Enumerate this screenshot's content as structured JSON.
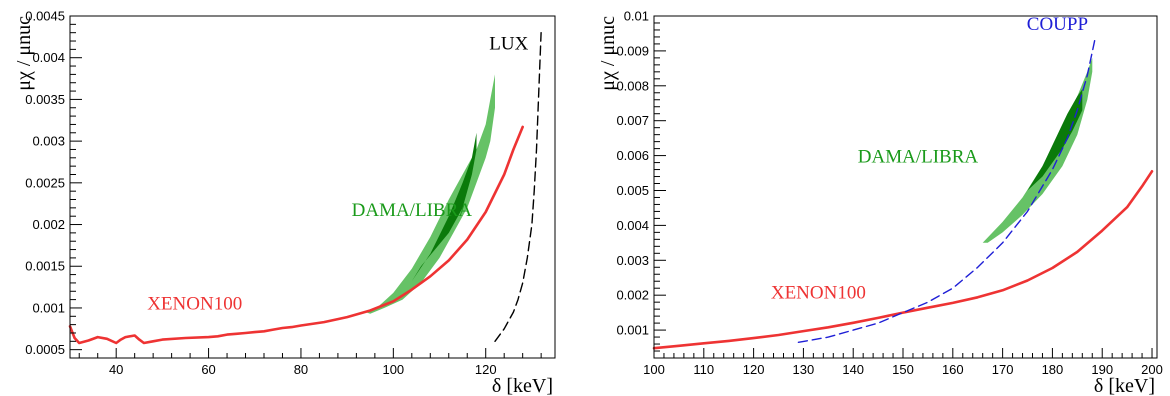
{
  "colors": {
    "xenon": "#ee3333",
    "lux": "#000000",
    "coupp": "#1f1fd6",
    "dama_outer": "#66c266",
    "dama_inner": "#0a7a0a",
    "dama_text": "#1a9a1a"
  },
  "chart_data": [
    {
      "type": "line",
      "xlabel": "δ [keV]",
      "ylabel": "μχ / μnuc",
      "xlim": [
        30,
        135
      ],
      "ylim": [
        0.0004,
        0.0045
      ],
      "x_ticks": [
        40,
        60,
        80,
        100,
        120
      ],
      "x_tick_labels": [
        "40",
        "60",
        "80",
        "100",
        "120"
      ],
      "y_ticks": [
        0.0005,
        0.001,
        0.0015,
        0.002,
        0.0025,
        0.003,
        0.0035,
        0.004,
        0.0045
      ],
      "y_tick_labels": [
        "0.0005",
        "0.001",
        "0.0015",
        "0.002",
        "0.0025",
        "0.003",
        "0.0035",
        "0.004",
        "0.0045"
      ],
      "grid": false,
      "series": [
        {
          "name": "XENON100",
          "style": "solid",
          "color_key": "xenon",
          "x": [
            30,
            31,
            32,
            34,
            36,
            38,
            40,
            41,
            42,
            44,
            45,
            46,
            48,
            50,
            55,
            60,
            62,
            64,
            66,
            68,
            70,
            72,
            74,
            76,
            78,
            80,
            85,
            90,
            95,
            100,
            104,
            108,
            112,
            116,
            120,
            124,
            126,
            128
          ],
          "y": [
            0.00078,
            0.00064,
            0.00058,
            0.00061,
            0.00065,
            0.00063,
            0.00058,
            0.00062,
            0.00065,
            0.00067,
            0.00062,
            0.00058,
            0.0006,
            0.00062,
            0.00064,
            0.00065,
            0.00066,
            0.00068,
            0.00069,
            0.0007,
            0.00071,
            0.00072,
            0.00074,
            0.00076,
            0.00077,
            0.00079,
            0.00083,
            0.00089,
            0.00097,
            0.00108,
            0.00122,
            0.00138,
            0.00157,
            0.00182,
            0.00215,
            0.0026,
            0.0029,
            0.00317
          ]
        },
        {
          "name": "LUX",
          "style": "dashed",
          "color_key": "lux",
          "x": [
            122,
            124,
            126,
            127,
            128,
            129,
            130,
            130.5,
            131,
            131.5,
            132
          ],
          "y": [
            0.0006,
            0.00075,
            0.00095,
            0.0011,
            0.0013,
            0.0016,
            0.002,
            0.0024,
            0.0029,
            0.0036,
            0.0043
          ]
        }
      ],
      "regions": [
        {
          "name": "DAMA/LIBRA",
          "level": "outer",
          "color_key": "dama_outer",
          "x": [
            94,
            96,
            100,
            104,
            108,
            112,
            116,
            118,
            120,
            121,
            122,
            122,
            121,
            120,
            118,
            116,
            113,
            110,
            106,
            102,
            98,
            95,
            94
          ],
          "y": [
            0.00095,
            0.00098,
            0.00118,
            0.00147,
            0.00185,
            0.0023,
            0.0027,
            0.0029,
            0.0032,
            0.0035,
            0.0038,
            0.0034,
            0.003,
            0.0028,
            0.0025,
            0.0022,
            0.0019,
            0.0016,
            0.0013,
            0.0011,
            0.001,
            0.00093,
            0.00095
          ]
        },
        {
          "name": "DAMA/LIBRA",
          "level": "inner",
          "color_key": "dama_inner",
          "x": [
            104,
            108,
            112,
            115,
            117,
            118,
            118,
            117,
            115,
            112,
            109,
            106,
            104
          ],
          "y": [
            0.00132,
            0.00165,
            0.0021,
            0.0025,
            0.0028,
            0.0031,
            0.0029,
            0.0026,
            0.0022,
            0.0019,
            0.0017,
            0.0015,
            0.00132
          ]
        }
      ],
      "annotations": [
        {
          "text": "DAMA/LIBRA",
          "color_key": "dama_text",
          "x": 104,
          "y": 0.0021
        },
        {
          "text": "XENON100",
          "color_key": "xenon",
          "x": 57,
          "y": 0.00098
        },
        {
          "text": "LUX",
          "color_key": "lux",
          "x": 125,
          "y": 0.0041
        }
      ]
    },
    {
      "type": "line",
      "xlabel": "δ [keV]",
      "ylabel": "μχ / μnuc",
      "xlim": [
        100,
        201
      ],
      "ylim": [
        0.0002,
        0.01
      ],
      "x_ticks": [
        100,
        110,
        120,
        130,
        140,
        150,
        160,
        170,
        180,
        190,
        200
      ],
      "x_tick_labels": [
        "100",
        "110",
        "120",
        "130",
        "140",
        "150",
        "160",
        "170",
        "180",
        "190",
        "200"
      ],
      "y_ticks": [
        0.001,
        0.002,
        0.003,
        0.004,
        0.005,
        0.006,
        0.007,
        0.008,
        0.009,
        0.01
      ],
      "y_tick_labels": [
        "0.001",
        "0.002",
        "0.003",
        "0.004",
        "0.005",
        "0.006",
        "0.007",
        "0.008",
        "0.009",
        "0.01"
      ],
      "grid": false,
      "series": [
        {
          "name": "XENON100",
          "style": "solid",
          "color_key": "xenon",
          "x": [
            100,
            105,
            110,
            115,
            120,
            125,
            130,
            135,
            140,
            145,
            150,
            155,
            160,
            165,
            170,
            175,
            180,
            185,
            190,
            195,
            198,
            200
          ],
          "y": [
            0.00048,
            0.00055,
            0.00062,
            0.00069,
            0.00077,
            0.00086,
            0.00097,
            0.00108,
            0.00121,
            0.00135,
            0.0015,
            0.00164,
            0.00178,
            0.00194,
            0.00214,
            0.00242,
            0.00278,
            0.00324,
            0.00385,
            0.00452,
            0.00512,
            0.00555
          ]
        },
        {
          "name": "COUPP",
          "style": "dashed",
          "color_key": "coupp",
          "x": [
            129,
            135,
            140,
            145,
            150,
            155,
            160,
            165,
            170,
            175,
            180,
            183,
            185,
            187,
            188.5
          ],
          "y": [
            0.00065,
            0.0008,
            0.001,
            0.0012,
            0.0015,
            0.0018,
            0.0022,
            0.0028,
            0.0035,
            0.0044,
            0.0056,
            0.0065,
            0.0073,
            0.0083,
            0.0093
          ]
        }
      ],
      "regions": [
        {
          "name": "DAMA/LIBRA",
          "level": "outer",
          "color_key": "dama_outer",
          "x": [
            166,
            170,
            174,
            178,
            182,
            185,
            187,
            188,
            188,
            187,
            185,
            182,
            178,
            174,
            170,
            167,
            166
          ],
          "y": [
            0.0035,
            0.0041,
            0.0048,
            0.0057,
            0.0068,
            0.0077,
            0.0084,
            0.0088,
            0.0084,
            0.0076,
            0.0066,
            0.0057,
            0.0049,
            0.0043,
            0.0038,
            0.0035,
            0.0035
          ]
        },
        {
          "name": "DAMA/LIBRA",
          "level": "inner",
          "color_key": "dama_inner",
          "x": [
            175,
            178,
            181,
            183,
            185,
            186,
            186,
            184,
            182,
            180,
            178,
            175
          ],
          "y": [
            0.005,
            0.0057,
            0.0066,
            0.0072,
            0.0077,
            0.0079,
            0.0073,
            0.0067,
            0.0062,
            0.0058,
            0.0054,
            0.005
          ]
        }
      ],
      "annotations": [
        {
          "text": "DAMA/LIBRA",
          "color_key": "dama_text",
          "x": 153,
          "y": 0.0058
        },
        {
          "text": "XENON100",
          "color_key": "xenon",
          "x": 133,
          "y": 0.0019
        },
        {
          "text": "COUPP",
          "color_key": "coupp",
          "x": 181,
          "y": 0.0096
        }
      ]
    }
  ]
}
